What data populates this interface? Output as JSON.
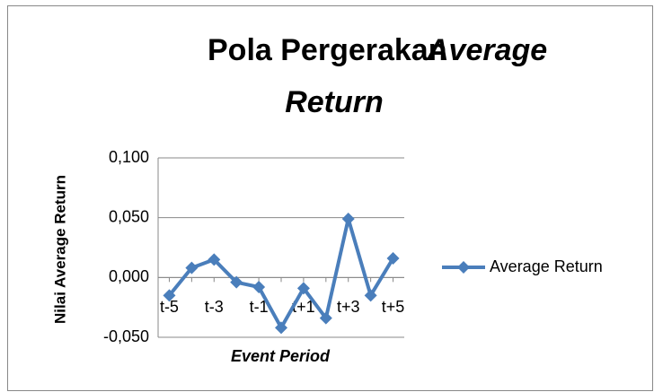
{
  "chart_data": {
    "type": "line",
    "title": [
      "Pola Pergerakan",
      "Average",
      "Return"
    ],
    "x_label": "Event Period",
    "y_label": "Nilai Average Return",
    "categories": [
      "t-5",
      null,
      "t-3",
      null,
      "t-1",
      null,
      "t+1",
      null,
      "t+3",
      null,
      "t+5"
    ],
    "series": [
      {
        "name": "Average Return",
        "color": "#4a7ebb",
        "values": [
          -0.015,
          0.008,
          0.015,
          -0.004,
          -0.008,
          -0.042,
          -0.009,
          -0.034,
          0.049,
          -0.015,
          0.016
        ]
      }
    ],
    "ylim": [
      -0.05,
      0.1
    ],
    "yticks": [
      {
        "value": -0.05,
        "label": "-0,050"
      },
      {
        "value": 0,
        "label": "0,000"
      },
      {
        "value": 0.05,
        "label": "0,050"
      },
      {
        "value": 0.1,
        "label": "0,100"
      }
    ],
    "grid": true,
    "legend": "right"
  }
}
